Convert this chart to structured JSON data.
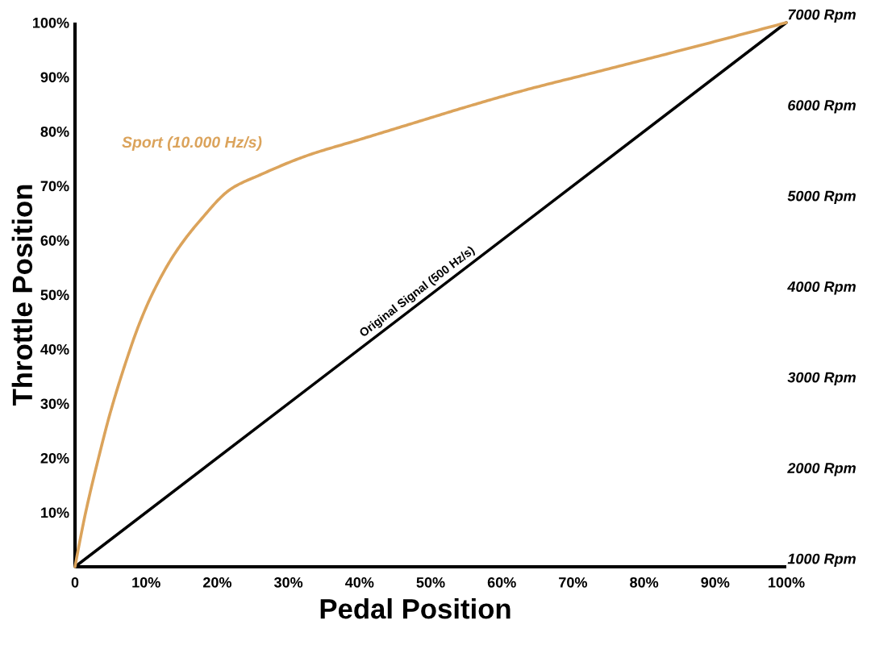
{
  "chart_data": {
    "type": "line",
    "xlabel": "Pedal Position",
    "ylabel": "Throttle Position",
    "xlim": [
      0,
      100
    ],
    "ylim": [
      0,
      100
    ],
    "y2lim": [
      1000,
      7000
    ],
    "xticks": [
      {
        "value": 0,
        "label": "0"
      },
      {
        "value": 10,
        "label": "10%"
      },
      {
        "value": 20,
        "label": "20%"
      },
      {
        "value": 30,
        "label": "30%"
      },
      {
        "value": 40,
        "label": "40%"
      },
      {
        "value": 50,
        "label": "50%"
      },
      {
        "value": 60,
        "label": "60%"
      },
      {
        "value": 70,
        "label": "70%"
      },
      {
        "value": 80,
        "label": "80%"
      },
      {
        "value": 90,
        "label": "90%"
      },
      {
        "value": 100,
        "label": "100%"
      }
    ],
    "yticks": [
      {
        "value": 10,
        "label": "10%"
      },
      {
        "value": 20,
        "label": "20%"
      },
      {
        "value": 30,
        "label": "30%"
      },
      {
        "value": 40,
        "label": "40%"
      },
      {
        "value": 50,
        "label": "50%"
      },
      {
        "value": 60,
        "label": "60%"
      },
      {
        "value": 70,
        "label": "70%"
      },
      {
        "value": 80,
        "label": "80%"
      },
      {
        "value": 90,
        "label": "90%"
      },
      {
        "value": 100,
        "label": "100%"
      }
    ],
    "y2ticks": [
      {
        "value": 1000,
        "label": "1000 Rpm"
      },
      {
        "value": 2000,
        "label": "2000 Rpm"
      },
      {
        "value": 3000,
        "label": "3000 Rpm"
      },
      {
        "value": 4000,
        "label": "4000 Rpm"
      },
      {
        "value": 5000,
        "label": "5000 Rpm"
      },
      {
        "value": 6000,
        "label": "6000 Rpm"
      },
      {
        "value": 7000,
        "label": "7000 Rpm"
      }
    ],
    "grid": false,
    "series": [
      {
        "name": "Original Signal (500 Hz/s)",
        "color": "#000000",
        "x": [
          0,
          100
        ],
        "values": [
          0,
          100
        ]
      },
      {
        "name": "Sport (10.000 Hz/s)",
        "color": "#dba35b",
        "x": [
          0,
          0.5,
          1.5,
          3.5,
          5,
          7.5,
          9,
          11,
          14,
          17.5,
          22,
          26,
          32.5,
          40,
          47.5,
          55,
          63,
          72,
          84,
          100
        ],
        "values": [
          0,
          3.5,
          10,
          21,
          28.5,
          39,
          44.5,
          50.5,
          57.5,
          63.5,
          69.5,
          72,
          75.5,
          78.5,
          81.5,
          84.5,
          87.5,
          90.5,
          94.5,
          100
        ]
      }
    ]
  }
}
